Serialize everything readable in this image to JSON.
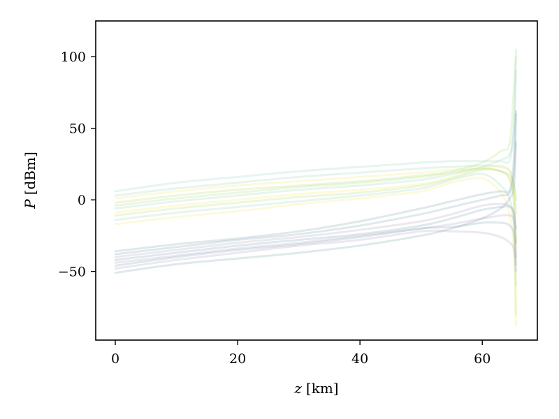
{
  "chart_data": {
    "type": "line",
    "title": "",
    "xlabel": {
      "symbol": "z",
      "unit": "[km]"
    },
    "ylabel": {
      "symbol": "P",
      "unit": "[dBm]"
    },
    "xlim": [
      -3.2,
      69
    ],
    "ylim": [
      -98,
      125
    ],
    "xticks": [
      0,
      20,
      40,
      60
    ],
    "yticks": [
      -50,
      0,
      50,
      100
    ],
    "ytick_labels": [
      "−50",
      "0",
      "50",
      "100"
    ],
    "grid": false,
    "legend": "none",
    "colormap": "viridis",
    "series_opacity": 0.25,
    "x": [
      0,
      10,
      20,
      30,
      40,
      50,
      55,
      60,
      63,
      64.5,
      65.2,
      65.5
    ],
    "series": [
      {
        "color": "#9fd9c0",
        "values": [
          6,
          12,
          16,
          20,
          23,
          26,
          27,
          27,
          27,
          28,
          55,
          105
        ]
      },
      {
        "color": "#9fd9c0",
        "values": [
          3,
          8,
          12,
          16,
          19,
          22,
          23,
          24,
          23,
          20,
          10,
          -10
        ]
      },
      {
        "color": "#f2ec6a",
        "values": [
          1,
          6,
          10,
          13,
          16,
          19,
          21,
          22,
          20,
          14,
          0,
          -30
        ]
      },
      {
        "color": "#b5e07a",
        "values": [
          -2,
          3,
          7,
          10,
          13,
          17,
          20,
          26,
          34,
          40,
          80,
          100
        ]
      },
      {
        "color": "#b5e07a",
        "values": [
          -4,
          1,
          5,
          9,
          12,
          16,
          19,
          22,
          20,
          17,
          10,
          0
        ]
      },
      {
        "color": "#9fd9c0",
        "values": [
          -6,
          -1,
          3,
          7,
          10,
          14,
          18,
          23,
          28,
          32,
          50,
          90
        ]
      },
      {
        "color": "#f2ec6a",
        "values": [
          -9,
          -4,
          0,
          4,
          7,
          11,
          16,
          22,
          24,
          20,
          5,
          -40
        ]
      },
      {
        "color": "#b5e07a",
        "values": [
          -11,
          -6,
          -2,
          2,
          5,
          10,
          15,
          21,
          20,
          14,
          -5,
          -80
        ]
      },
      {
        "color": "#9fd9c0",
        "values": [
          -14,
          -9,
          -5,
          -1,
          3,
          8,
          14,
          18,
          10,
          0,
          -20,
          -60
        ]
      },
      {
        "color": "#f2ec6a",
        "values": [
          -17,
          -12,
          -8,
          -3,
          1,
          6,
          12,
          15,
          5,
          -10,
          -40,
          -88
        ]
      },
      {
        "color": "#7fa7b5",
        "values": [
          -36,
          -31,
          -27,
          -22,
          -15,
          -6,
          -1,
          4,
          6,
          7,
          30,
          62
        ]
      },
      {
        "color": "#7fa7b5",
        "values": [
          -38,
          -33,
          -28,
          -24,
          -18,
          -10,
          -5,
          0,
          3,
          5,
          20,
          60
        ]
      },
      {
        "color": "#b3a3c9",
        "values": [
          -40,
          -35,
          -30,
          -26,
          -21,
          -15,
          -10,
          -4,
          -3,
          -4,
          -10,
          -20
        ]
      },
      {
        "color": "#7fa7b5",
        "values": [
          -42,
          -37,
          -32,
          -28,
          -24,
          -18,
          -13,
          -7,
          -5,
          -5,
          -10,
          -30
        ]
      },
      {
        "color": "#b3a3c9",
        "values": [
          -44,
          -39,
          -34,
          -30,
          -25,
          -20,
          -17,
          -13,
          -11,
          -11,
          -15,
          -40
        ]
      },
      {
        "color": "#7fa7b5",
        "values": [
          -46,
          -40,
          -35,
          -31,
          -26,
          -20,
          -19,
          -16,
          -16,
          -18,
          -25,
          -45
        ]
      },
      {
        "color": "#b3a3c9",
        "values": [
          -48,
          -42,
          -37,
          -32,
          -28,
          -22,
          -22,
          -23,
          -26,
          -30,
          -35,
          -50
        ]
      },
      {
        "color": "#7fa7b5",
        "values": [
          -51,
          -45,
          -41,
          -37,
          -32,
          -25,
          -20,
          -13,
          -6,
          1,
          10,
          40
        ]
      }
    ]
  }
}
